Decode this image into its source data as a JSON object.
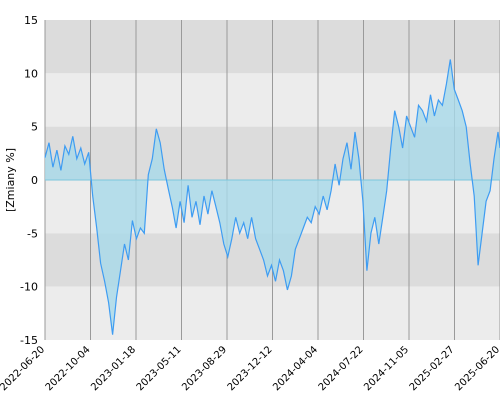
{
  "chart_data": {
    "type": "area",
    "title": "",
    "xlabel": "",
    "ylabel": "[Zmiany %]",
    "x_ticks": [
      "2022-06-20",
      "2022-10-04",
      "2023-01-18",
      "2023-05-11",
      "2023-08-29",
      "2023-12-12",
      "2024-04-04",
      "2024-07-22",
      "2024-11-05",
      "2025-02-27",
      "2025-06-20"
    ],
    "y_ticks": [
      "15",
      "10",
      "5",
      "0",
      "-5",
      "-10",
      "-15"
    ],
    "ylim": [
      -15,
      15
    ],
    "grid": true,
    "band_colors": [
      "#dcdcdc",
      "#ececec"
    ],
    "line_color": "#3e9cf2",
    "fill_color": "#a7d9ea",
    "series": [
      {
        "values": [
          [
            0,
            2.1
          ],
          [
            4,
            3.5
          ],
          [
            8,
            1.2
          ],
          [
            12,
            2.8
          ],
          [
            16,
            0.9
          ],
          [
            20,
            3.2
          ],
          [
            24,
            2.4
          ],
          [
            28,
            4.1
          ],
          [
            32,
            2.0
          ],
          [
            36,
            3.0
          ],
          [
            40,
            1.5
          ],
          [
            44,
            2.6
          ],
          [
            48,
            -1.5
          ],
          [
            52,
            -4.5
          ],
          [
            56,
            -7.8
          ],
          [
            60,
            -9.5
          ],
          [
            64,
            -11.5
          ],
          [
            68,
            -14.5
          ],
          [
            72,
            -11.0
          ],
          [
            76,
            -8.5
          ],
          [
            80,
            -6.0
          ],
          [
            84,
            -7.5
          ],
          [
            88,
            -3.8
          ],
          [
            92,
            -5.5
          ],
          [
            96,
            -4.5
          ],
          [
            100,
            -5.0
          ],
          [
            104,
            0.5
          ],
          [
            108,
            2.0
          ],
          [
            112,
            4.8
          ],
          [
            116,
            3.5
          ],
          [
            120,
            1.0
          ],
          [
            124,
            -0.8
          ],
          [
            128,
            -2.5
          ],
          [
            132,
            -4.5
          ],
          [
            136,
            -2.0
          ],
          [
            140,
            -4.0
          ],
          [
            144,
            -0.5
          ],
          [
            148,
            -3.5
          ],
          [
            152,
            -2.0
          ],
          [
            156,
            -4.2
          ],
          [
            160,
            -1.5
          ],
          [
            164,
            -3.2
          ],
          [
            168,
            -1.0
          ],
          [
            172,
            -2.5
          ],
          [
            176,
            -4.0
          ],
          [
            180,
            -6.0
          ],
          [
            184,
            -7.2
          ],
          [
            188,
            -5.5
          ],
          [
            192,
            -3.5
          ],
          [
            196,
            -5.0
          ],
          [
            200,
            -4.0
          ],
          [
            204,
            -5.5
          ],
          [
            208,
            -3.5
          ],
          [
            212,
            -5.5
          ],
          [
            216,
            -6.5
          ],
          [
            220,
            -7.5
          ],
          [
            224,
            -9.0
          ],
          [
            228,
            -8.0
          ],
          [
            232,
            -9.5
          ],
          [
            236,
            -7.5
          ],
          [
            240,
            -8.5
          ],
          [
            244,
            -10.3
          ],
          [
            248,
            -9.0
          ],
          [
            252,
            -6.5
          ],
          [
            256,
            -5.5
          ],
          [
            260,
            -4.5
          ],
          [
            264,
            -3.5
          ],
          [
            268,
            -4.0
          ],
          [
            272,
            -2.5
          ],
          [
            276,
            -3.2
          ],
          [
            280,
            -1.5
          ],
          [
            284,
            -2.8
          ],
          [
            288,
            -1.0
          ],
          [
            292,
            1.5
          ],
          [
            296,
            -0.5
          ],
          [
            300,
            2.0
          ],
          [
            304,
            3.5
          ],
          [
            308,
            1.0
          ],
          [
            312,
            4.5
          ],
          [
            316,
            2.0
          ],
          [
            320,
            -2.0
          ],
          [
            324,
            -8.5
          ],
          [
            328,
            -5.0
          ],
          [
            332,
            -3.5
          ],
          [
            336,
            -6.0
          ],
          [
            340,
            -3.5
          ],
          [
            344,
            -1.0
          ],
          [
            348,
            3.0
          ],
          [
            352,
            6.5
          ],
          [
            356,
            5.0
          ],
          [
            360,
            3.0
          ],
          [
            364,
            6.0
          ],
          [
            368,
            5.0
          ],
          [
            372,
            4.0
          ],
          [
            376,
            7.0
          ],
          [
            380,
            6.5
          ],
          [
            384,
            5.5
          ],
          [
            388,
            8.0
          ],
          [
            392,
            6.0
          ],
          [
            396,
            7.5
          ],
          [
            400,
            7.0
          ],
          [
            404,
            9.0
          ],
          [
            408,
            11.3
          ],
          [
            412,
            8.5
          ],
          [
            416,
            7.5
          ],
          [
            420,
            6.5
          ],
          [
            424,
            5.0
          ],
          [
            428,
            1.5
          ],
          [
            432,
            -1.5
          ],
          [
            436,
            -8.0
          ],
          [
            440,
            -5.0
          ],
          [
            444,
            -2.0
          ],
          [
            448,
            -1.0
          ],
          [
            452,
            2.0
          ],
          [
            456,
            4.5
          ],
          [
            458,
            3.0
          ]
        ]
      }
    ]
  }
}
